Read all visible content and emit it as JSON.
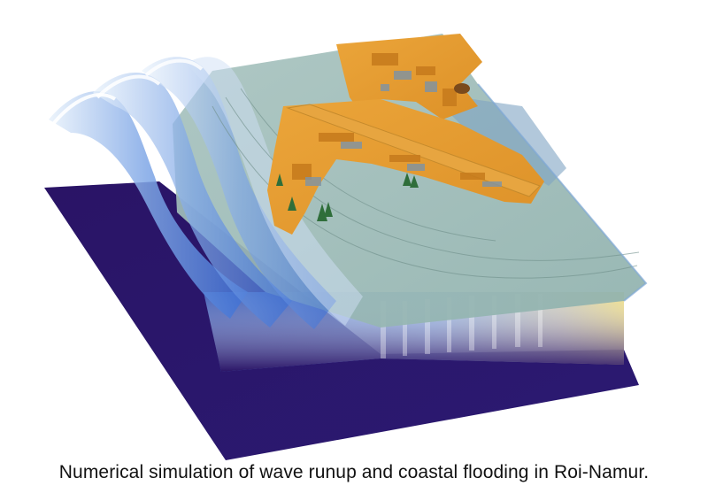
{
  "figure": {
    "caption": "Numerical simulation of wave runup and coastal flooding in Roi-Namur.",
    "colors": {
      "seabed": "#2a1466",
      "water": "#93b7b0",
      "wave_crest": "#e6f1fb",
      "wave_trough": "#3f78d8",
      "land": "#e49a2e",
      "land_dark": "#c67a1c",
      "vegetation": "#2f6e3a",
      "lagoon": "#7fa4c3",
      "side_glow": "#e8d46a"
    }
  }
}
